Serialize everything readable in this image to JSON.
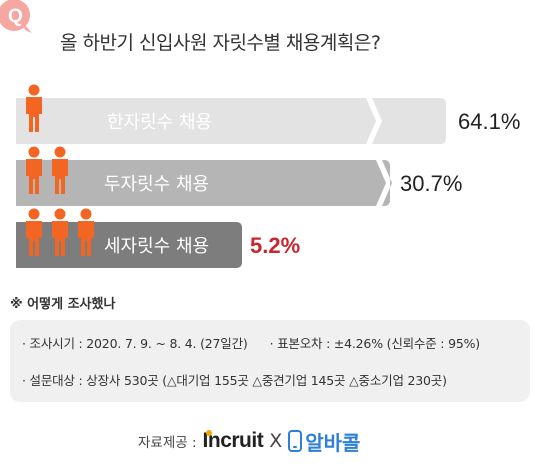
{
  "header": {
    "badge_letter": "Q",
    "title": "올 하반기 신입사원 자릿수별 채용계획은?"
  },
  "chart_data": {
    "type": "bar",
    "orientation": "horizontal",
    "categories": [
      "한자릿수 채용",
      "두자릿수 채용",
      "세자릿수 채용"
    ],
    "values": [
      64.1,
      30.7,
      5.2
    ],
    "value_labels": [
      "64.1%",
      "30.7%",
      "5.2%"
    ],
    "person_icon_counts": [
      1,
      2,
      3
    ],
    "colors": {
      "bars": [
        "#e3e3e3",
        "#b5b5b5",
        "#7d7d7d"
      ],
      "bar_text": [
        "#ffffff",
        "#ffffff",
        "#ffffff"
      ],
      "value_text": [
        "#222222",
        "#222222",
        "#c8282d"
      ],
      "person_icon": "#f26522",
      "badge": "#f7a7a2"
    },
    "title": "",
    "xlabel": "",
    "ylabel": "",
    "grid": false,
    "legend": "none"
  },
  "survey": {
    "heading": "※ 어떻게 조사했나",
    "period": "· 조사시기 : 2020. 7. 9. ~ 8. 4. (27일간)",
    "margin_of_error": "· 표본오차 : ±4.26% (신뢰수준 : 95%)",
    "subjects": "· 설문대상 : 상장사 530곳 (△대기업 155곳 △중견기업 145곳 △중소기업 230곳)"
  },
  "footer": {
    "source_label": "자료제공 :",
    "brand1": "Incruit",
    "separator": "X",
    "brand2": "알바콜"
  }
}
